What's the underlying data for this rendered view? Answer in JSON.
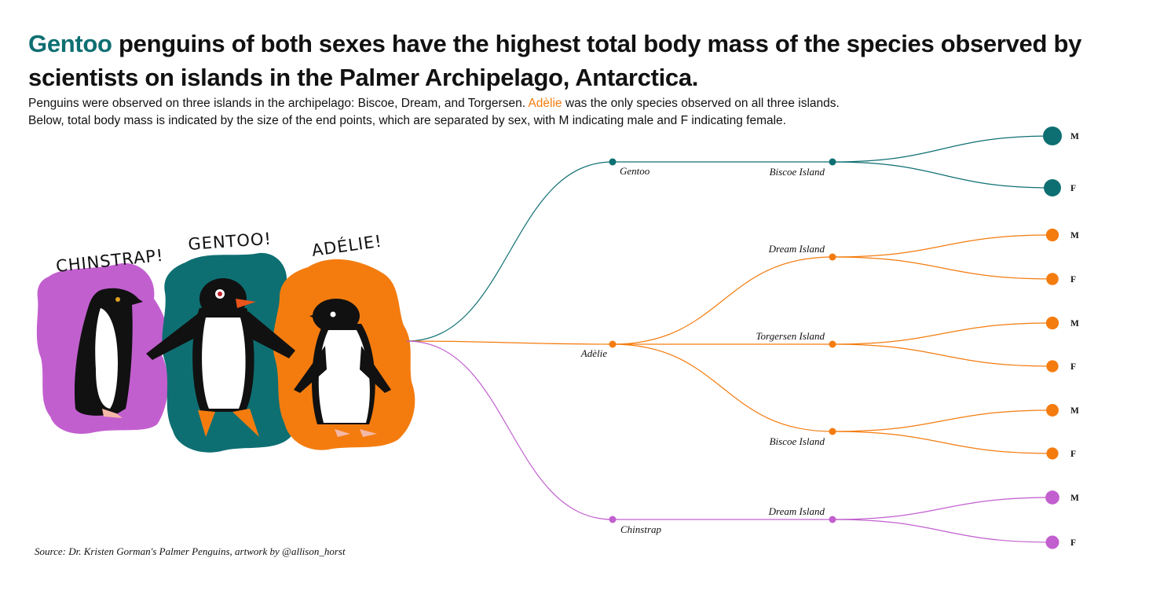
{
  "title": {
    "highlight": "Gentoo",
    "rest": " penguins of both sexes have the highest total body mass of the species observed by scientists on islands in the Palmer Archipelago, Antarctica."
  },
  "subtitle": {
    "line1_before": "Penguins were observed on three islands in the archipelago: Biscoe, Dream, and Torgersen. ",
    "line1_highlight": "Adèlie",
    "line1_after": " was the only species observed on all three islands.",
    "line2": "Below, total body mass is indicated by the size of the end points, which are separated by sex, with M indicating male and F indicating female."
  },
  "source": "Source: Dr. Kristen Gorman's Palmer Penguins, artwork by @allison_horst",
  "artwork": {
    "chinstrap_label": "CHINSTRAP!",
    "gentoo_label": "GENTOO!",
    "adelie_label": "ADÉLIE!"
  },
  "colors": {
    "gentoo": "#0e6f72",
    "adelie": "#f47c0f",
    "chinstrap": "#c25fcf"
  },
  "tree": {
    "species": [
      {
        "name": "Gentoo",
        "color": "#0e6f72",
        "islands": [
          {
            "name": "Biscoe Island",
            "sexes": [
              {
                "label": "M",
                "mass": 1
              },
              {
                "label": "F",
                "mass": 0.85
              }
            ]
          }
        ]
      },
      {
        "name": "Adèlie",
        "color": "#f47c0f",
        "islands": [
          {
            "name": "Dream Island",
            "sexes": [
              {
                "label": "M",
                "mass": 0.45
              },
              {
                "label": "F",
                "mass": 0.4
              }
            ]
          },
          {
            "name": "Torgersen Island",
            "sexes": [
              {
                "label": "M",
                "mass": 0.45
              },
              {
                "label": "F",
                "mass": 0.38
              }
            ]
          },
          {
            "name": "Biscoe Island",
            "sexes": [
              {
                "label": "M",
                "mass": 0.42
              },
              {
                "label": "F",
                "mass": 0.37
              }
            ]
          }
        ]
      },
      {
        "name": "Chinstrap",
        "color": "#c25fcf",
        "islands": [
          {
            "name": "Dream Island",
            "sexes": [
              {
                "label": "M",
                "mass": 0.55
              },
              {
                "label": "F",
                "mass": 0.5
              }
            ]
          }
        ]
      }
    ]
  }
}
